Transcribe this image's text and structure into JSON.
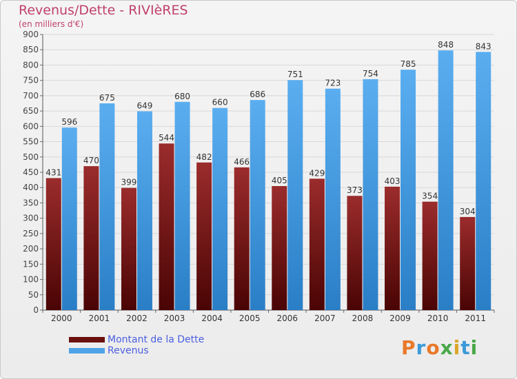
{
  "header": {
    "title": "Revenus/Dette - RIVIèRES",
    "subtitle": "(en milliers d'€)"
  },
  "colors": {
    "debt": "#8b1a1a",
    "revenue": "#4fa3e8",
    "title": "#c0406c",
    "legend_text": "#4a5ee0"
  },
  "legend": {
    "items": [
      {
        "label": "Montant de la Dette",
        "color": "#6b0f0f"
      },
      {
        "label": "Revenus",
        "color": "#4fa3e8"
      }
    ]
  },
  "logo": {
    "text": "Proxiti"
  },
  "chart_data": {
    "type": "bar",
    "categories": [
      "2000",
      "2001",
      "2002",
      "2003",
      "2004",
      "2005",
      "2006",
      "2007",
      "2008",
      "2009",
      "2010",
      "2011"
    ],
    "series": [
      {
        "name": "Montant de la Dette",
        "values": [
          431,
          470,
          399,
          544,
          482,
          466,
          405,
          429,
          373,
          403,
          354,
          304
        ]
      },
      {
        "name": "Revenus",
        "values": [
          596,
          675,
          649,
          680,
          660,
          686,
          751,
          723,
          754,
          785,
          848,
          843
        ]
      }
    ],
    "ylim": [
      0,
      900
    ],
    "yticks": [
      0,
      50,
      100,
      150,
      200,
      250,
      300,
      350,
      400,
      450,
      500,
      550,
      600,
      650,
      700,
      750,
      800,
      850,
      900
    ],
    "grid": true,
    "title": "Revenus/Dette - RIVIèRES",
    "ylabel": "(en milliers d'€)",
    "legend_position": "bottom-left"
  }
}
